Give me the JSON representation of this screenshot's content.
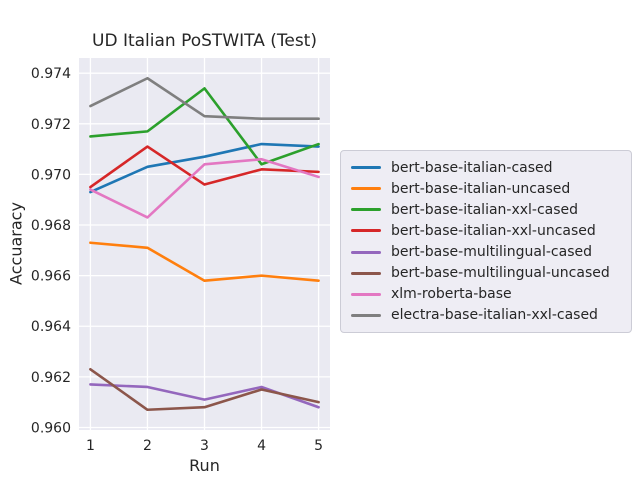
{
  "chart_data": {
    "type": "line",
    "title": "UD Italian PoSTWITA (Test)",
    "xlabel": "Run",
    "ylabel": "Accuaracy",
    "x": [
      1,
      2,
      3,
      4,
      5
    ],
    "series": [
      {
        "name": "bert-base-italian-cased",
        "color": "#1f77b4",
        "values": [
          0.9693,
          0.9703,
          0.9707,
          0.9712,
          0.9711
        ]
      },
      {
        "name": "bert-base-italian-uncased",
        "color": "#ff7f0e",
        "values": [
          0.9673,
          0.9671,
          0.9658,
          0.966,
          0.9658
        ]
      },
      {
        "name": "bert-base-italian-xxl-cased",
        "color": "#2ca02c",
        "values": [
          0.9715,
          0.9717,
          0.9734,
          0.9704,
          0.9712
        ]
      },
      {
        "name": "bert-base-italian-xxl-uncased",
        "color": "#d62728",
        "values": [
          0.9695,
          0.9711,
          0.9696,
          0.9702,
          0.9701
        ]
      },
      {
        "name": "bert-base-multilingual-cased",
        "color": "#9467bd",
        "values": [
          0.9617,
          0.9616,
          0.9611,
          0.9616,
          0.9608
        ]
      },
      {
        "name": "bert-base-multilingual-uncased",
        "color": "#8c564b",
        "values": [
          0.9623,
          0.9607,
          0.9608,
          0.9615,
          0.961
        ]
      },
      {
        "name": "xlm-roberta-base",
        "color": "#e377c2",
        "values": [
          0.9694,
          0.9683,
          0.9704,
          0.9706,
          0.9699
        ]
      },
      {
        "name": "electra-base-italian-xxl-cased",
        "color": "#7f7f7f",
        "values": [
          0.9727,
          0.9738,
          0.9723,
          0.9722,
          0.9722
        ]
      }
    ],
    "xlim": [
      0.8,
      5.2
    ],
    "ylim": [
      0.9599,
      0.9746
    ],
    "xticks": [
      1,
      2,
      3,
      4,
      5
    ],
    "xtick_labels": [
      "1",
      "2",
      "3",
      "4",
      "5"
    ],
    "yticks": [
      0.96,
      0.962,
      0.964,
      0.966,
      0.968,
      0.97,
      0.972,
      0.974
    ],
    "ytick_labels": [
      "0.960",
      "0.962",
      "0.964",
      "0.966",
      "0.968",
      "0.970",
      "0.972",
      "0.974"
    ],
    "grid": true,
    "legend_position": "right of axes, middle",
    "plot_bg": "#eaeaf2",
    "grid_color": "#ffffff",
    "text_color": "#262626"
  }
}
